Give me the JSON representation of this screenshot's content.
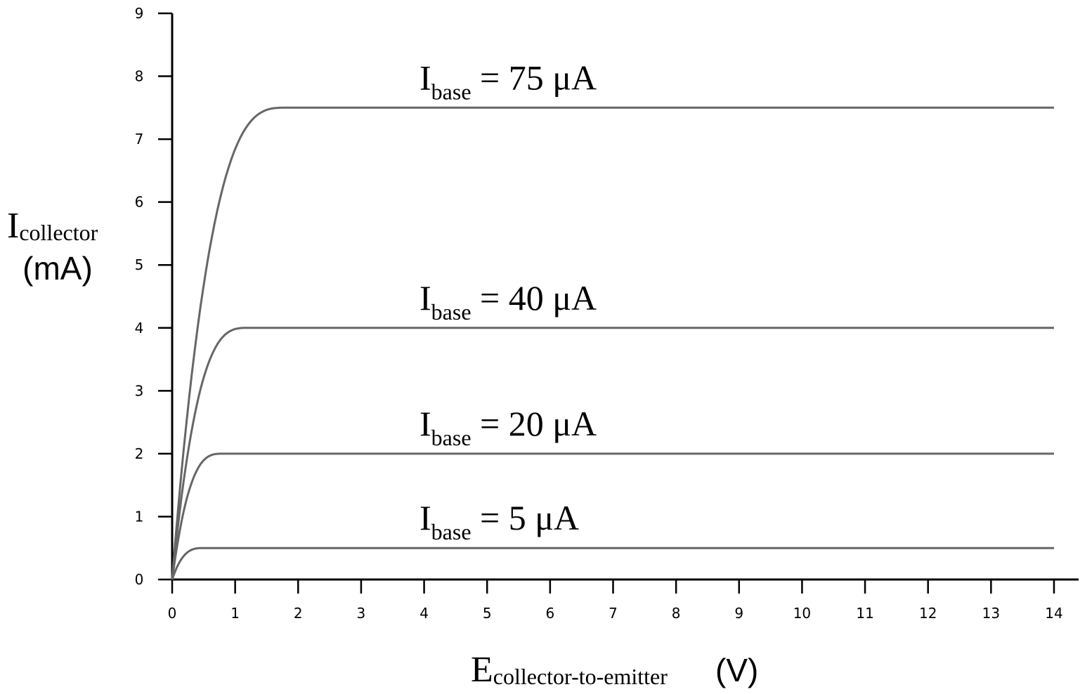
{
  "chart_data": {
    "type": "line",
    "xlabel": {
      "main": "E",
      "sub": "collector-to-emitter",
      "unit": "(V)"
    },
    "ylabel": {
      "main": "I",
      "sub": "collector",
      "unit": "(mA)"
    },
    "xlim": [
      0,
      14
    ],
    "ylim": [
      0,
      9
    ],
    "x_ticks": [
      "0",
      "1",
      "2",
      "3",
      "4",
      "5",
      "6",
      "7",
      "8",
      "9",
      "10",
      "11",
      "12",
      "13",
      "14"
    ],
    "y_ticks": [
      "0",
      "1",
      "2",
      "3",
      "4",
      "5",
      "6",
      "7",
      "8",
      "9"
    ],
    "grid": false,
    "series": [
      {
        "label": {
          "main": "I",
          "sub": "base",
          "rest": " = 5 μA"
        },
        "saturation_current_mA": 0.5,
        "knee_voltage_V": 0.5,
        "end_voltage_V": 14
      },
      {
        "label": {
          "main": "I",
          "sub": "base",
          "rest": " = 20 μA"
        },
        "saturation_current_mA": 2,
        "knee_voltage_V": 0.8,
        "end_voltage_V": 14
      },
      {
        "label": {
          "main": "I",
          "sub": "base",
          "rest": " = 40 μA"
        },
        "saturation_current_mA": 4,
        "knee_voltage_V": 1.2,
        "end_voltage_V": 14
      },
      {
        "label": {
          "main": "I",
          "sub": "base",
          "rest": " = 75 μA"
        },
        "saturation_current_mA": 7.5,
        "knee_voltage_V": 1.8,
        "end_voltage_V": 14
      }
    ],
    "colors": {
      "curve": "#666666",
      "axis": "#000000"
    }
  }
}
